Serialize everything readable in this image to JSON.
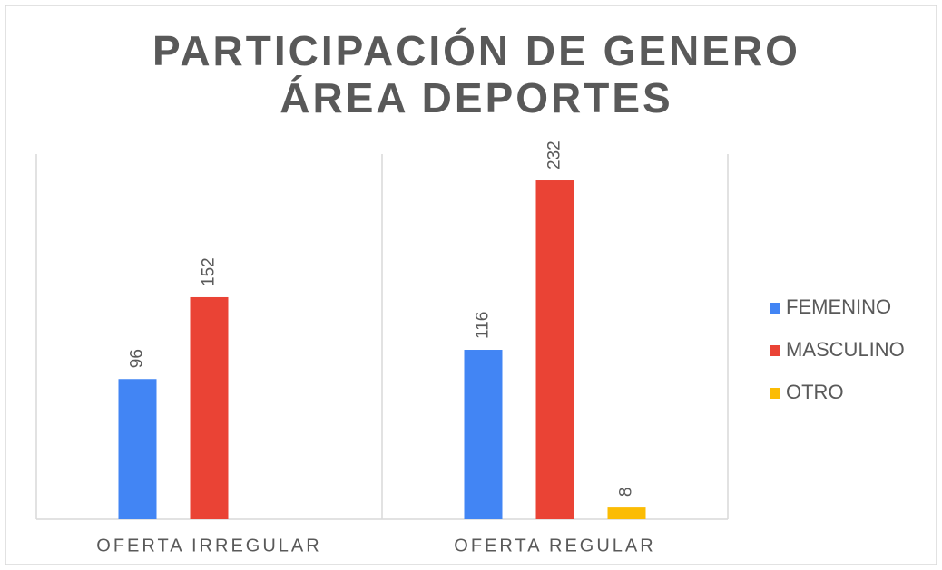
{
  "chart_data": {
    "type": "bar",
    "title": [
      "PARTICIPACIÓN DE GENERO",
      "ÁREA DEPORTES"
    ],
    "categories": [
      "OFERTA IRREGULAR",
      "OFERTA REGULAR"
    ],
    "series": [
      {
        "name": "FEMENINO",
        "color": "#4285f4",
        "values": [
          96,
          116
        ]
      },
      {
        "name": "MASCULINO",
        "color": "#ea4335",
        "values": [
          152,
          232
        ]
      },
      {
        "name": "OTRO",
        "color": "#fbbc04",
        "values": [
          null,
          8
        ]
      }
    ],
    "ylim": [
      0,
      250
    ],
    "legend": "right"
  }
}
